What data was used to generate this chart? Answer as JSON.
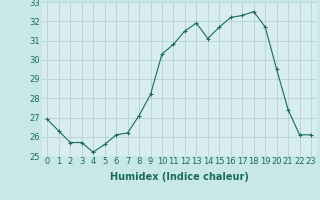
{
  "xlabel": "Humidex (Indice chaleur)",
  "x": [
    0,
    1,
    2,
    3,
    4,
    5,
    6,
    7,
    8,
    9,
    10,
    11,
    12,
    13,
    14,
    15,
    16,
    17,
    18,
    19,
    20,
    21,
    22,
    23
  ],
  "y": [
    26.9,
    26.3,
    25.7,
    25.7,
    25.2,
    25.6,
    26.1,
    26.2,
    27.1,
    28.2,
    30.3,
    30.8,
    31.5,
    31.9,
    31.1,
    31.7,
    32.2,
    32.3,
    32.5,
    31.7,
    29.5,
    27.4,
    26.1,
    26.1
  ],
  "ylim": [
    25,
    33
  ],
  "yticks": [
    25,
    26,
    27,
    28,
    29,
    30,
    31,
    32,
    33
  ],
  "line_color": "#1a6b5a",
  "marker": "+",
  "marker_size": 3,
  "marker_linewidth": 0.8,
  "linewidth": 0.8,
  "bg_color": "#c8e8e8",
  "grid_color": "#b0cccc",
  "axis_bg": "#d8eeee",
  "tick_fontsize": 6,
  "label_fontsize": 7,
  "tick_color": "#1a6b5a",
  "label_color": "#1a6b5a"
}
